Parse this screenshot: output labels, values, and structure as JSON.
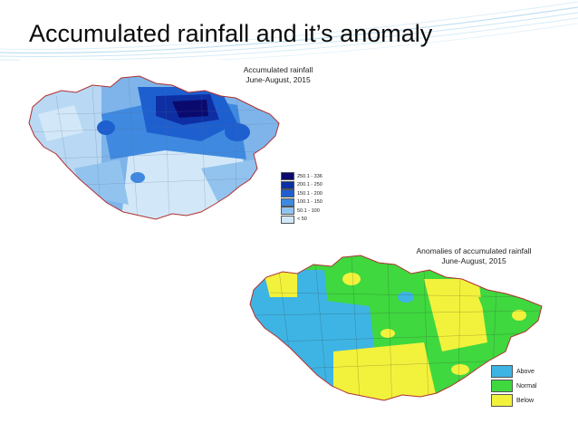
{
  "slide": {
    "title": "Accumulated rainfall and it’s anomaly"
  },
  "map_rainfall": {
    "title_line1": "Accumulated rainfall",
    "title_line2": "June-August, 2015",
    "legend": [
      {
        "label": "250.1 - 336",
        "color": "#0a0a6e"
      },
      {
        "label": "200.1 - 250",
        "color": "#0e2fa3"
      },
      {
        "label": "150.1 - 200",
        "color": "#1e5fd0"
      },
      {
        "label": "100.1 - 150",
        "color": "#3f8ae0"
      },
      {
        "label": "50.1 - 100",
        "color": "#92c3ee"
      },
      {
        "label": "< 50",
        "color": "#d2e8f8"
      }
    ]
  },
  "map_anomaly": {
    "title_line1": "Anomalies of accumulated rainfall",
    "title_line2": "June-August, 2015",
    "legend": [
      {
        "label": "Above",
        "color": "#3eb4e4"
      },
      {
        "label": "Normal",
        "color": "#3fd83f"
      },
      {
        "label": "Below",
        "color": "#f2f23c"
      }
    ]
  },
  "colors": {
    "swoosh": "#bfe0f2",
    "border": "#b03030"
  }
}
